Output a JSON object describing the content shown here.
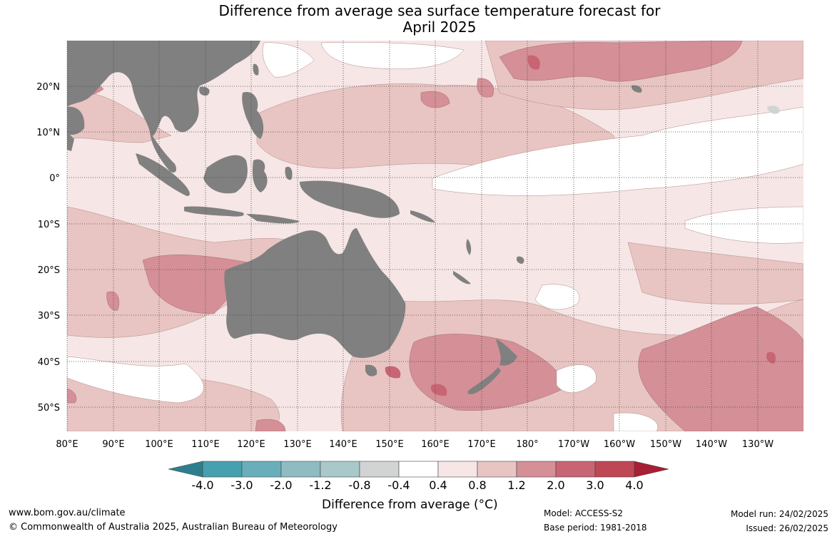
{
  "title_line1": "Difference from average sea surface temperature forecast for",
  "title_line2": "April 2025",
  "lat_labels": [
    "20°N",
    "10°N",
    "0°",
    "10°S",
    "20°S",
    "30°S",
    "40°S",
    "50°S"
  ],
  "lon_labels": [
    "80°E",
    "90°E",
    "100°E",
    "110°E",
    "120°E",
    "130°E",
    "140°E",
    "150°E",
    "160°E",
    "170°E",
    "180°",
    "170°W",
    "160°W",
    "150°W",
    "140°W",
    "130°W"
  ],
  "colorbar": {
    "labels": [
      "-4.0",
      "-3.0",
      "-2.0",
      "-1.2",
      "-0.8",
      "-0.4",
      "0.4",
      "0.8",
      "1.2",
      "2.0",
      "3.0",
      "4.0"
    ],
    "colors": [
      "#2e7f8e",
      "#47a0b0",
      "#6aaebb",
      "#8fbbc2",
      "#a8c8ca",
      "#d2d4d4",
      "#ffffff",
      "#f6e6e6",
      "#e8c5c2",
      "#d48f97",
      "#c86573",
      "#bf4655",
      "#a81e34"
    ],
    "title": "Difference from average (°C)"
  },
  "footer": {
    "website": "www.bom.gov.au/climate",
    "copyright": "© Commonwealth of Australia 2025, Australian Bureau of Meteorology",
    "model": "Model: ACCESS-S2",
    "base_period": "Base period: 1981-2018",
    "model_run": "Model run: 24/02/2025",
    "issued": "Issued: 26/02/2025"
  },
  "colors": {
    "land": "#808080",
    "grid": "#333333"
  }
}
